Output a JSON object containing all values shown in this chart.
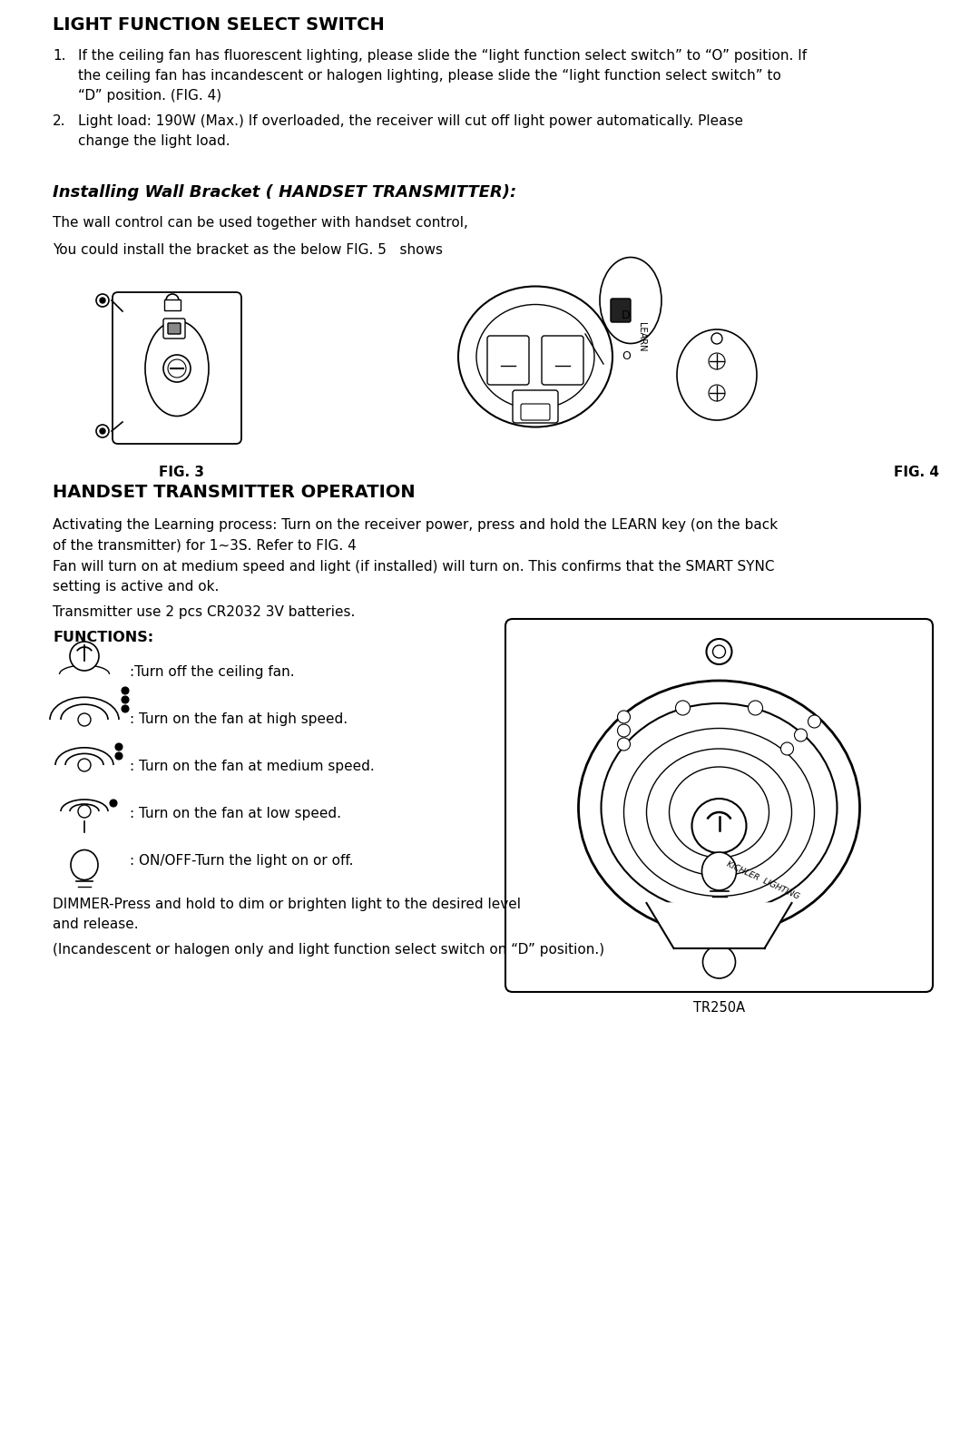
{
  "bg_color": "#ffffff",
  "text_color": "#000000",
  "title1": "LIGHT FUNCTION SELECT SWITCH",
  "title2": "Installing Wall Bracket ( HANDSET TRANSMITTER):",
  "title3": "HANDSET TRANSMITTER OPERATION",
  "functions_title": "FUNCTIONS:",
  "body2_1": "The wall control can be used together with handset control,",
  "body2_2": "You could install the bracket as the below FIG. 5   shows",
  "body3_3": "Transmitter use 2 pcs CR2032 3V batteries.",
  "func1": ":Turn off the ceiling fan.",
  "func2": ": Turn on the fan at high speed.",
  "func3": ": Turn on the fan at medium speed.",
  "func4": ": Turn on the fan at low speed.",
  "func5": ": ON/OFF-Turn the light on or off.",
  "func6_1": "DIMMER-Press and hold to dim or brighten light to the desired level",
  "func6_2": "and release.",
  "func7": "(Incandescent or halogen only and light function select switch on “D” position.)",
  "fig3_label": "FIG. 3",
  "fig4_label": "FIG. 4",
  "tr_label": "TR250A",
  "ml": 0.055,
  "mr": 0.98,
  "fs_title1": 14,
  "fs_title2": 13,
  "fs_body": 11,
  "fs_label": 11
}
